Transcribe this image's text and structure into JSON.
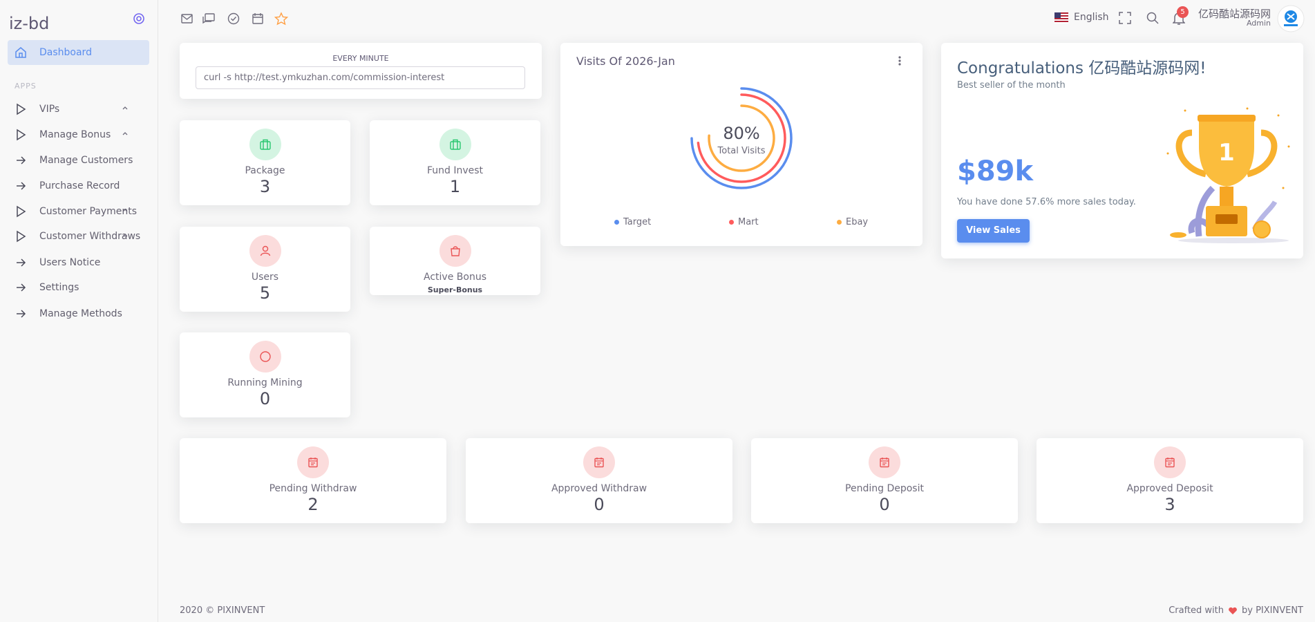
{
  "sidebar": {
    "brand": "iz-bd",
    "active": "Dashboard",
    "section": "APPS",
    "items": [
      "VIPs",
      "Manage Bonus",
      "Manage Customers",
      "Purchase Record",
      "Customer Payments",
      "Customer Withdraws",
      "Users Notice",
      "Settings",
      "Manage Methods"
    ]
  },
  "header": {
    "language": "English",
    "notifications": 5,
    "user_name": "亿码酷站源码网",
    "user_role": "Admin"
  },
  "cron": {
    "label": "EVERY MINUTE",
    "command": "curl -s http://test.ymkuzhan.com/commission-interest"
  },
  "stats": [
    {
      "label": "Package",
      "value": 3
    },
    {
      "label": "Fund Invest",
      "value": 1
    },
    {
      "label": "Users",
      "value": 5
    },
    {
      "label": "Active Bonus",
      "value": "Super-Bonus"
    },
    {
      "label": "Running Mining",
      "value": 0
    }
  ],
  "transactions": [
    {
      "label": "Pending Withdraw",
      "value": 2
    },
    {
      "label": "Approved Withdraw",
      "value": 0
    },
    {
      "label": "Pending Deposit",
      "value": 0
    },
    {
      "label": "Approved Deposit",
      "value": 3
    }
  ],
  "visits": {
    "title": "Visits Of 2026-Jan",
    "center_value": "80%",
    "center_label": "Total Visits",
    "legend": [
      "Target",
      "Mart",
      "Ebay"
    ]
  },
  "congrats": {
    "title": "Congratulations 亿码酷站源码网!",
    "subtitle": "Best seller of the month",
    "amount": "$89k",
    "text": "You have done 57.6% more sales today.",
    "button": "View Sales"
  },
  "footer": {
    "copyright": "2020 © PIXINVENT",
    "crafted": "Crafted with",
    "by": "by PIXINVENT"
  }
}
